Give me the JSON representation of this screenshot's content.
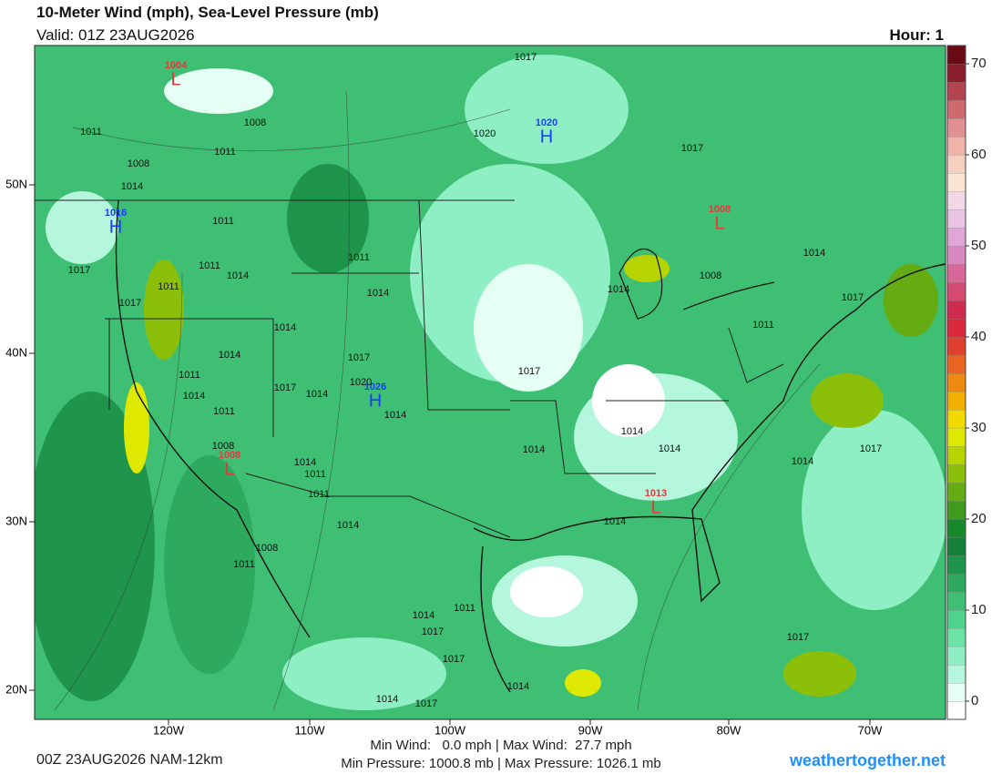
{
  "header": {
    "title": "10-Meter Wind (mph), Sea-Level Pressure (mb)",
    "valid": "Valid: 01Z 23AUG2026",
    "hour": "Hour: 1"
  },
  "colorbar": {
    "range": [
      -2,
      72
    ],
    "ticks": [
      0,
      10,
      20,
      30,
      40,
      50,
      60,
      70
    ],
    "colors": [
      "#ffffff",
      "#e6fff5",
      "#b4f7dc",
      "#8eefc4",
      "#6be3a7",
      "#4fd28c",
      "#3ebf73",
      "#2eaa5e",
      "#1f944b",
      "#14803a",
      "#168a2a",
      "#3f9a1e",
      "#64ac12",
      "#8cbf0a",
      "#b8d400",
      "#dfe800",
      "#f2d900",
      "#f2b000",
      "#ee8a10",
      "#e86420",
      "#e0402e",
      "#d82a3c",
      "#d02a50",
      "#d44a70",
      "#d8679a",
      "#d989c0",
      "#e0a6d8",
      "#eac4e4",
      "#f3d8e6",
      "#fbe4d2",
      "#f7cfc0",
      "#efb3aa",
      "#e09090",
      "#cc6a6e",
      "#b44450",
      "#8a1e2c",
      "#6a0a14"
    ]
  },
  "axes": {
    "longitudes": [
      "120W",
      "110W",
      "100W",
      "90W",
      "80W",
      "70W"
    ],
    "latitudes": [
      "50N",
      "40N",
      "30N",
      "20N"
    ]
  },
  "pressure_centers": [
    {
      "letter": "L",
      "value": 1004
    },
    {
      "letter": "H",
      "value": 1020
    },
    {
      "letter": "L",
      "value": 1008
    },
    {
      "letter": "H",
      "value": 1016
    },
    {
      "letter": "H",
      "value": 1026
    },
    {
      "letter": "L",
      "value": 1008
    },
    {
      "letter": "L",
      "value": 1013
    }
  ],
  "isobar_labels": [
    1011,
    1008,
    1011,
    1008,
    1014,
    1017,
    1020,
    1017,
    1011,
    1017,
    1011,
    1011,
    1014,
    1011,
    1014,
    1014,
    1008,
    1014,
    1017,
    1017,
    1014,
    1011,
    1014,
    1017,
    1011,
    1020,
    1014,
    1017,
    1014,
    1011,
    1014,
    1017,
    1014,
    1014,
    1014,
    1008,
    1014,
    1011,
    1011,
    1014,
    1014,
    1017,
    1014,
    1008,
    1011,
    1014,
    1017,
    1011,
    1017,
    1014,
    1014,
    1017,
    1017
  ],
  "footer": {
    "run": "00Z 23AUG2026 NAM-12km",
    "wind": "Min Wind:   0.0 mph | Max Wind:  27.7 mph",
    "pressure": "Min Pressure: 1000.8 mb | Max Pressure: 1026.1 mb",
    "site": "weathertogether.net"
  }
}
